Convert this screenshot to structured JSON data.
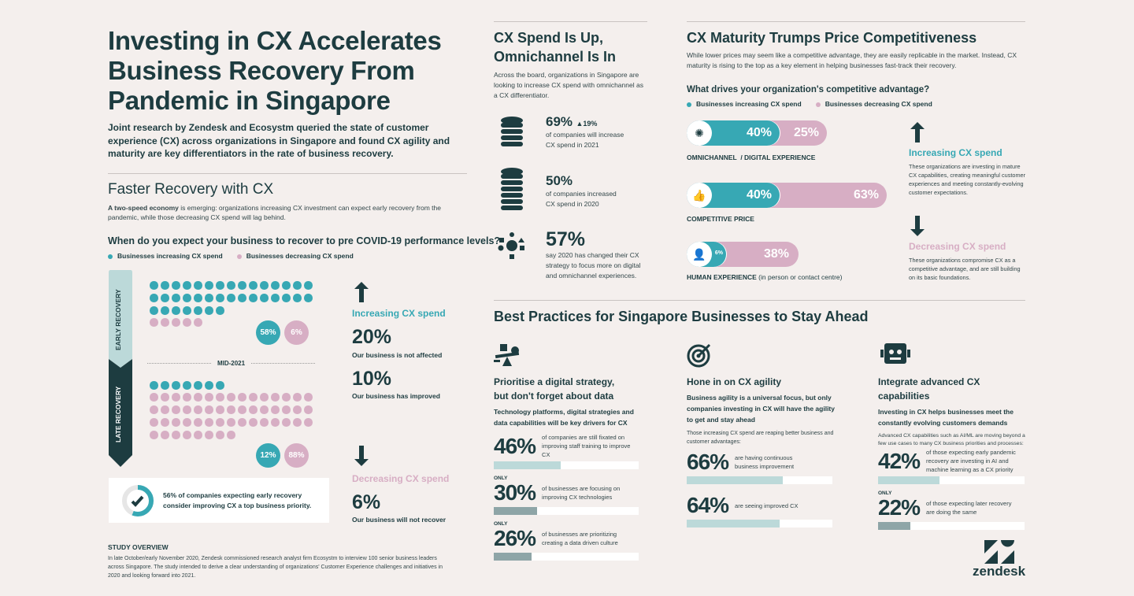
{
  "header": {
    "title_lines": [
      "Investing in CX Accelerates",
      "Business Recovery From",
      "Pandemic in Singapore"
    ],
    "intro": "Joint research by Zendesk and Ecosystm queried the state of customer experience (CX) across organizations in Singapore and found CX agility and maturity are key differentiators in the rate of business recovery."
  },
  "recovery": {
    "title": "Faster Recovery with CX",
    "text_bold": "A two-speed economy",
    "text": " is emerging: organizations increasing CX investment can expect early recovery from the pandemic, while those decreasing CX spend will lag behind.",
    "question": "When do you expect your business to recover to pre COVID-19 performance levels?",
    "legend": [
      "Businesses increasing CX spend",
      "Businesses decreasing CX spend"
    ],
    "early_label": "EARLY RECOVERY",
    "late_label": "LATE RECOVERY",
    "mid_label": "MID-2021",
    "early": {
      "increasing_dots": 37,
      "decreasing_dots": 5,
      "increasing_pct": "58%",
      "decreasing_pct": "6%"
    },
    "late": {
      "increasing_dots": 7,
      "decreasing_dots": 53,
      "increasing_pct": "12%",
      "decreasing_pct": "88%"
    },
    "increasing": {
      "label": "Increasing CX spend",
      "stats": [
        {
          "value": "20%",
          "label": "Our business is not affected"
        },
        {
          "value": "10%",
          "label": "Our business has improved"
        }
      ]
    },
    "decreasing": {
      "label": "Decreasing CX spend",
      "stats": [
        {
          "value": "6%",
          "label": "Our business will not recover"
        }
      ]
    },
    "callout": {
      "line1": "56% of companies expecting early recovery",
      "line2": "consider improving CX a top business priority.",
      "progress": 0.56
    }
  },
  "study": {
    "title": "STUDY OVERVIEW",
    "text": "In late October/early November 2020, Zendesk commissioned research analyst firm Ecosystm to interview 100 senior business leaders across Singapore. The study intended to derive a clear understanding of organizations' Customer Experience challenges and initiatives in 2020 and looking forward into 2021."
  },
  "spend": {
    "title_lines": [
      "CX Spend Is Up,",
      "Omnichannel Is In"
    ],
    "intro": "Across the board, organizations in Singapore are looking to increase CX spend with omnichannel as a CX differentiator.",
    "items": [
      {
        "value": "69%",
        "delta": "▲19%",
        "text_lines": [
          "of companies will increase",
          "CX spend in 2021"
        ],
        "icon": "coin-stack-icon"
      },
      {
        "value": "50%",
        "text_lines": [
          "of companies increased",
          "CX spend in 2020"
        ],
        "icon": "coin-stack-tall-icon"
      },
      {
        "value": "57%",
        "text_lines": [
          "say 2020 has changed their CX",
          "strategy to focus more on digital",
          "and omnichannel experiences."
        ],
        "icon": "omnichannel-shapes-icon"
      }
    ]
  },
  "maturity": {
    "title": "CX Maturity Trumps Price Competitiveness",
    "intro": "While lower prices may seem like a competitive advantage, they are easily replicable in the market. Instead, CX maturity is rising to the top as a key element in helping businesses fast-track their recovery.",
    "question": "What drives your organization's competitive advantage?",
    "legend": [
      "Businesses increasing CX spend",
      "Businesses decreasing CX spend"
    ],
    "bars": [
      {
        "label": "OMNICHANNEL  / DIGITAL EXPERIENCE",
        "label_extra": "",
        "increasing": "40%",
        "decreasing": "25%",
        "icon": "omnichannel-icon"
      },
      {
        "label": "COMPETITIVE PRICE",
        "label_extra": "",
        "increasing": "40%",
        "decreasing": "63%",
        "icon": "thumbs-up-icon"
      },
      {
        "label": "HUMAN EXPERIENCE",
        "label_extra": " (in person or contact centre)",
        "increasing": "6%",
        "decreasing": "38%",
        "icon": "person-icon"
      }
    ],
    "increasing": {
      "label": "Increasing CX spend",
      "text": "These organizations are investing in mature CX capabilities, creating meaningful customer experiences and meeting constantly-evolving customer expectations."
    },
    "decreasing": {
      "label": "Decreasing CX spend",
      "text": "These organizations compromise CX as a competitive advantage, and are still building on its basic foundations."
    }
  },
  "practices": {
    "title": "Best Practices for Singapore Businesses to Stay Ahead",
    "columns": [
      {
        "heading": "Prioritise a digital strategy, but don't forget about data",
        "sub": "Technology platforms, digital strategies and data capabilities will be key drivers for CX",
        "note": "",
        "icon": "balance-icon",
        "stats": [
          {
            "prefix": "",
            "value": "46%",
            "pct": 46,
            "text": "of companies are still fixated on improving staff training to improve CX"
          },
          {
            "prefix": "ONLY",
            "value": "30%",
            "pct": 30,
            "text": "of businesses are focusing on improving CX technologies"
          },
          {
            "prefix": "ONLY",
            "value": "26%",
            "pct": 26,
            "text": "of businesses are prioritizing creating a data driven culture"
          }
        ]
      },
      {
        "heading": "Hone in on CX agility",
        "sub": "Business agility is a universal focus, but only companies investing in CX will have the agility to get and stay ahead",
        "note": "Those increasing CX spend are reaping better business and customer advantages:",
        "icon": "target-icon",
        "stats": [
          {
            "prefix": "",
            "value": "66%",
            "pct": 66,
            "text": "are having continuous business improvement"
          },
          {
            "prefix": "",
            "value": "64%",
            "pct": 64,
            "text": "are seeing improved CX"
          }
        ]
      },
      {
        "heading": "Integrate advanced CX capabilities",
        "sub": "Investing in CX helps businesses meet the constantly evolving customers demands",
        "note": "Advanced CX capabilities such as AI/ML are moving beyond a few use cases to many CX business priorities and processes:",
        "icon": "robot-icon",
        "stats": [
          {
            "prefix": "",
            "value": "42%",
            "pct": 42,
            "text": "of those expecting early pandemic recovery are investing in AI and machine learning as a CX priority"
          },
          {
            "prefix": "ONLY",
            "value": "22%",
            "pct": 22,
            "text": "of those expecting later recovery are doing the same"
          }
        ]
      }
    ]
  },
  "brand": {
    "name": "zendesk"
  },
  "colors": {
    "dark": "#1d3c40",
    "teal": "#37a8b4",
    "pink": "#d7aec4",
    "bar_light": "#bcd9d9",
    "bar_grey": "#8ea5a7",
    "bg": "#f4efed"
  }
}
